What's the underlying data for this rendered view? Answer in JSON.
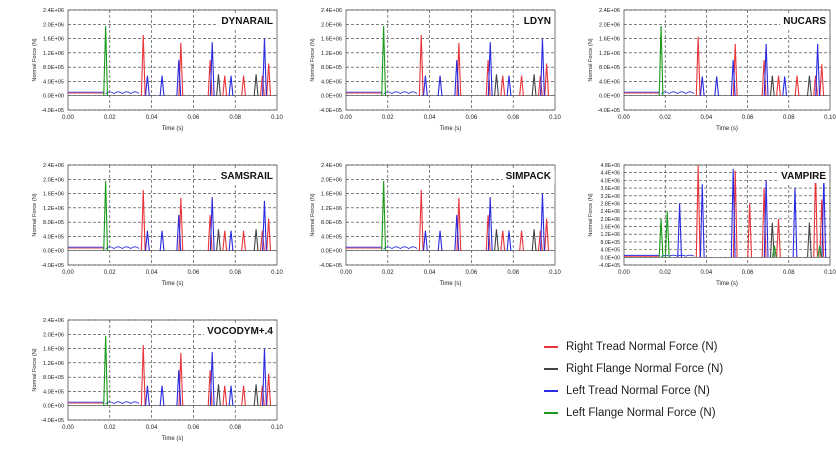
{
  "x_axis_label": "Time (s)",
  "y_axis_label": "Normal Force (N)",
  "legend": [
    {
      "label": "Right Tread Normal Force (N)",
      "color": "#e8343a"
    },
    {
      "label": "Right Flange Normal Force (N)",
      "color": "#444444"
    },
    {
      "label": "Left Tread Normal Force (N)",
      "color": "#2a2ae0"
    },
    {
      "label": "Left Flange Normal Force (N)",
      "color": "#1a9a1a"
    }
  ],
  "chart_data": [
    {
      "type": "line",
      "title": "DYNARAIL",
      "xlim": [
        0,
        0.1
      ],
      "ylim": [
        -400000,
        2400000
      ],
      "x_ticks": [
        "0.00",
        "0.02",
        "0.04",
        "0.06",
        "0.08",
        "0.10"
      ],
      "y_ticks": [
        "-4.0E+05",
        "0.0E+00",
        "4.0E+05",
        "8.0E+05",
        "1.2E+06",
        "1.6E+06",
        "2.0E+06",
        "2.4E+06"
      ],
      "y_values": [
        -400000,
        0,
        400000,
        800000,
        1200000,
        1600000,
        2000000,
        2400000
      ],
      "series": [
        {
          "color": "#e8343a",
          "peaks": [
            [
              0.036,
              1700000
            ],
            [
              0.054,
              1480000
            ],
            [
              0.068,
              1000000
            ],
            [
              0.075,
              560000
            ],
            [
              0.084,
              560000
            ],
            [
              0.093,
              560000
            ],
            [
              0.096,
              900000
            ]
          ]
        },
        {
          "color": "#444444",
          "peaks": [
            [
              0.072,
              600000
            ],
            [
              0.09,
              600000
            ]
          ]
        },
        {
          "color": "#2a2ae0",
          "peaks": [
            [
              0.038,
              560000
            ],
            [
              0.045,
              560000
            ],
            [
              0.053,
              1000000
            ],
            [
              0.069,
              1500000
            ],
            [
              0.078,
              560000
            ],
            [
              0.094,
              1600000
            ]
          ]
        },
        {
          "color": "#1a9a1a",
          "peaks": [
            [
              0.018,
              1950000
            ]
          ]
        }
      ]
    },
    {
      "type": "line",
      "title": "LDYN",
      "xlim": [
        0,
        0.1
      ],
      "ylim": [
        -400000,
        2400000
      ],
      "x_ticks": [
        "0.00",
        "0.02",
        "0.04",
        "0.06",
        "0.08",
        "0.10"
      ],
      "y_ticks": [
        "-4.0E+05",
        "0.0E+00",
        "4.0E+05",
        "8.0E+05",
        "1.2E+06",
        "1.6E+06",
        "2.0E+06",
        "2.4E+06"
      ],
      "y_values": [
        -400000,
        0,
        400000,
        800000,
        1200000,
        1600000,
        2000000,
        2400000
      ],
      "series": [
        {
          "color": "#e8343a",
          "peaks": [
            [
              0.036,
              1700000
            ],
            [
              0.054,
              1480000
            ],
            [
              0.068,
              1000000
            ],
            [
              0.075,
              560000
            ],
            [
              0.084,
              560000
            ],
            [
              0.093,
              560000
            ],
            [
              0.096,
              900000
            ]
          ]
        },
        {
          "color": "#444444",
          "peaks": [
            [
              0.072,
              600000
            ],
            [
              0.09,
              600000
            ]
          ]
        },
        {
          "color": "#2a2ae0",
          "peaks": [
            [
              0.038,
              560000
            ],
            [
              0.045,
              560000
            ],
            [
              0.053,
              1000000
            ],
            [
              0.069,
              1500000
            ],
            [
              0.078,
              560000
            ],
            [
              0.094,
              1600000
            ]
          ]
        },
        {
          "color": "#1a9a1a",
          "peaks": [
            [
              0.018,
              1950000
            ]
          ]
        }
      ]
    },
    {
      "type": "line",
      "title": "NUCARS",
      "xlim": [
        0,
        0.1
      ],
      "ylim": [
        -400000,
        2400000
      ],
      "x_ticks": [
        "0.00",
        "0.02",
        "0.04",
        "0.06",
        "0.08",
        "0.10"
      ],
      "y_ticks": [
        "-4.0E+05",
        "0.0E+00",
        "4.0E+05",
        "8.0E+05",
        "1.2E+06",
        "1.6E+06",
        "2.0E+06",
        "2.4E+06"
      ],
      "y_values": [
        -400000,
        0,
        400000,
        800000,
        1200000,
        1600000,
        2000000,
        2400000
      ],
      "series": [
        {
          "color": "#e8343a",
          "peaks": [
            [
              0.036,
              1650000
            ],
            [
              0.054,
              1450000
            ],
            [
              0.068,
              1000000
            ],
            [
              0.075,
              560000
            ],
            [
              0.084,
              560000
            ],
            [
              0.093,
              560000
            ],
            [
              0.096,
              880000
            ]
          ]
        },
        {
          "color": "#444444",
          "peaks": [
            [
              0.072,
              560000
            ],
            [
              0.09,
              560000
            ]
          ]
        },
        {
          "color": "#2a2ae0",
          "peaks": [
            [
              0.038,
              540000
            ],
            [
              0.045,
              540000
            ],
            [
              0.053,
              1000000
            ],
            [
              0.069,
              1450000
            ],
            [
              0.078,
              540000
            ],
            [
              0.094,
              1450000
            ]
          ]
        },
        {
          "color": "#1a9a1a",
          "peaks": [
            [
              0.018,
              1950000
            ]
          ]
        }
      ]
    },
    {
      "type": "line",
      "title": "SAMSRAIL",
      "xlim": [
        0,
        0.1
      ],
      "ylim": [
        -400000,
        2400000
      ],
      "x_ticks": [
        "0.00",
        "0.02",
        "0.04",
        "0.06",
        "0.08",
        "0.10"
      ],
      "y_ticks": [
        "-4.0E+05",
        "0.0E+00",
        "4.0E+05",
        "8.0E+05",
        "1.2E+06",
        "1.6E+06",
        "2.0E+06",
        "2.4E+06"
      ],
      "y_values": [
        -400000,
        0,
        400000,
        800000,
        1200000,
        1600000,
        2000000,
        2400000
      ],
      "series": [
        {
          "color": "#e8343a",
          "peaks": [
            [
              0.036,
              1700000
            ],
            [
              0.054,
              1480000
            ],
            [
              0.068,
              1000000
            ],
            [
              0.075,
              560000
            ],
            [
              0.084,
              560000
            ],
            [
              0.093,
              560000
            ],
            [
              0.096,
              900000
            ]
          ]
        },
        {
          "color": "#444444",
          "peaks": [
            [
              0.072,
              600000
            ],
            [
              0.09,
              600000
            ]
          ]
        },
        {
          "color": "#2a2ae0",
          "peaks": [
            [
              0.038,
              560000
            ],
            [
              0.045,
              560000
            ],
            [
              0.053,
              1000000
            ],
            [
              0.069,
              1500000
            ],
            [
              0.078,
              560000
            ],
            [
              0.094,
              1400000
            ]
          ]
        },
        {
          "color": "#1a9a1a",
          "peaks": [
            [
              0.018,
              1950000
            ]
          ]
        }
      ]
    },
    {
      "type": "line",
      "title": "SIMPACK",
      "xlim": [
        0,
        0.1
      ],
      "ylim": [
        -400000,
        2400000
      ],
      "x_ticks": [
        "0.00",
        "0.02",
        "0.04",
        "0.06",
        "0.08",
        "0.10"
      ],
      "y_ticks": [
        "-4.0E+05",
        "0.0E+00",
        "4.0E+05",
        "8.0E+05",
        "1.2E+06",
        "1.6E+06",
        "2.0E+06",
        "2.4E+06"
      ],
      "y_values": [
        -400000,
        0,
        400000,
        800000,
        1200000,
        1600000,
        2000000,
        2400000
      ],
      "series": [
        {
          "color": "#e8343a",
          "peaks": [
            [
              0.036,
              1700000
            ],
            [
              0.054,
              1480000
            ],
            [
              0.068,
              1000000
            ],
            [
              0.075,
              560000
            ],
            [
              0.084,
              560000
            ],
            [
              0.093,
              560000
            ],
            [
              0.096,
              900000
            ]
          ]
        },
        {
          "color": "#444444",
          "peaks": [
            [
              0.072,
              600000
            ],
            [
              0.09,
              600000
            ]
          ]
        },
        {
          "color": "#2a2ae0",
          "peaks": [
            [
              0.038,
              560000
            ],
            [
              0.045,
              560000
            ],
            [
              0.053,
              1000000
            ],
            [
              0.069,
              1500000
            ],
            [
              0.078,
              560000
            ],
            [
              0.094,
              1600000
            ]
          ]
        },
        {
          "color": "#1a9a1a",
          "peaks": [
            [
              0.018,
              1950000
            ]
          ]
        }
      ]
    },
    {
      "type": "line",
      "title": "VAMPIRE",
      "xlim": [
        0,
        0.1
      ],
      "ylim": [
        -400000,
        4800000
      ],
      "x_ticks": [
        "0.00",
        "0.02",
        "0.04",
        "0.06",
        "0.08",
        "0.10"
      ],
      "y_ticks": [
        "-4.0E+05",
        "0.0E+00",
        "4.0E+05",
        "8.0E+05",
        "1.2E+06",
        "1.6E+06",
        "2.0E+06",
        "2.4E+06",
        "2.8E+06",
        "3.2E+06",
        "3.6E+06",
        "4.0E+06",
        "4.4E+06",
        "4.8E+06"
      ],
      "y_values": [
        -400000,
        0,
        400000,
        800000,
        1200000,
        1600000,
        2000000,
        2400000,
        2800000,
        3200000,
        3600000,
        4000000,
        4400000,
        4800000
      ],
      "series": [
        {
          "color": "#e8343a",
          "peaks": [
            [
              0.036,
              4800000
            ],
            [
              0.054,
              4500000
            ],
            [
              0.061,
              2800000
            ],
            [
              0.068,
              3600000
            ],
            [
              0.075,
              2000000
            ],
            [
              0.093,
              4500000
            ],
            [
              0.096,
              3000000
            ]
          ]
        },
        {
          "color": "#444444",
          "peaks": [
            [
              0.072,
              1800000
            ],
            [
              0.09,
              1800000
            ]
          ]
        },
        {
          "color": "#2a2ae0",
          "peaks": [
            [
              0.027,
              2800000
            ],
            [
              0.038,
              3800000
            ],
            [
              0.053,
              4600000
            ],
            [
              0.069,
              4000000
            ],
            [
              0.083,
              3600000
            ],
            [
              0.097,
              4200000
            ]
          ]
        },
        {
          "color": "#1a9a1a",
          "peaks": [
            [
              0.018,
              2000000
            ],
            [
              0.021,
              2400000
            ],
            [
              0.073,
              600000
            ],
            [
              0.095,
              600000
            ]
          ]
        }
      ]
    },
    {
      "type": "line",
      "title": "VOCODYM+.4",
      "xlim": [
        0,
        0.1
      ],
      "ylim": [
        -400000,
        2400000
      ],
      "x_ticks": [
        "0.00",
        "0.02",
        "0.04",
        "0.06",
        "0.08",
        "0.10"
      ],
      "y_ticks": [
        "-4.0E+05",
        "0.0E+00",
        "4.0E+05",
        "8.0E+05",
        "1.2E+06",
        "1.6E+06",
        "2.0E+06",
        "2.4E+06"
      ],
      "y_values": [
        -400000,
        0,
        400000,
        800000,
        1200000,
        1600000,
        2000000,
        2400000
      ],
      "series": [
        {
          "color": "#e8343a",
          "peaks": [
            [
              0.036,
              1700000
            ],
            [
              0.054,
              1480000
            ],
            [
              0.068,
              1000000
            ],
            [
              0.075,
              560000
            ],
            [
              0.084,
              560000
            ],
            [
              0.093,
              560000
            ],
            [
              0.096,
              900000
            ]
          ]
        },
        {
          "color": "#444444",
          "peaks": [
            [
              0.072,
              600000
            ],
            [
              0.09,
              600000
            ]
          ]
        },
        {
          "color": "#2a2ae0",
          "peaks": [
            [
              0.038,
              560000
            ],
            [
              0.045,
              560000
            ],
            [
              0.053,
              1000000
            ],
            [
              0.069,
              1500000
            ],
            [
              0.078,
              560000
            ],
            [
              0.094,
              1600000
            ]
          ]
        },
        {
          "color": "#1a9a1a",
          "peaks": [
            [
              0.018,
              1950000
            ]
          ]
        }
      ]
    }
  ]
}
